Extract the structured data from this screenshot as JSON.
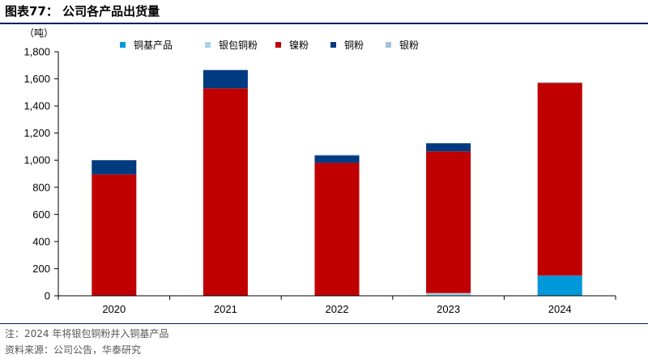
{
  "figure": {
    "title": "图表77：  公司各产品出货量",
    "note": "注：2024 年将银包铜粉并入铜基产品",
    "source": "资料来源：公司公告，华泰研究"
  },
  "chart_data": {
    "type": "bar",
    "stacked": true,
    "title": "",
    "xlabel": "",
    "ylabel": "（吨）",
    "ylim": [
      0,
      1800
    ],
    "yticks": [
      0,
      200,
      400,
      600,
      800,
      1000,
      1200,
      1400,
      1600,
      1800
    ],
    "ytick_labels": [
      "0",
      "200",
      "400",
      "600",
      "800",
      "1,000",
      "1,200",
      "1,400",
      "1,600",
      "1,800"
    ],
    "categories": [
      "2020",
      "2021",
      "2022",
      "2023",
      "2024"
    ],
    "grid": false,
    "legend_position": "top",
    "series": [
      {
        "name": "铜基产品",
        "color": "#0098D8",
        "values": [
          0,
          0,
          0,
          0,
          150
        ]
      },
      {
        "name": "银包铜粉",
        "color": "#A6D1E6",
        "values": [
          0,
          0,
          0,
          20,
          0
        ]
      },
      {
        "name": "镍粉",
        "color": "#C00000",
        "values": [
          895,
          1530,
          980,
          1045,
          1420
        ]
      },
      {
        "name": "铜粉",
        "color": "#003A80",
        "values": [
          105,
          135,
          55,
          60,
          0
        ]
      },
      {
        "name": "银粉",
        "color": "#A5C2D8",
        "values": [
          0,
          0,
          5,
          0,
          5
        ]
      }
    ]
  }
}
